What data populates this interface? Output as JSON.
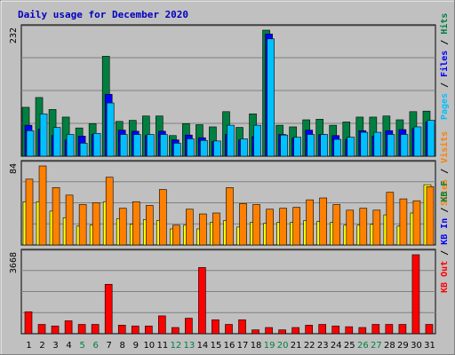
{
  "title": "Daily usage for December 2020",
  "colors": {
    "background": "#C0C0C0",
    "frame": "#808080",
    "panel": "#C0C0C0",
    "title": "#0000C0",
    "hits": "#008040",
    "files": "#0000FF",
    "pages": "#00C0FF",
    "visits": "#FFFF00",
    "sites": "#FF8000",
    "kb": "#FF0000",
    "weekend": "#008040",
    "weekday": "#000000"
  },
  "chart_data": [
    {
      "type": "bar",
      "name": "hits-files-pages",
      "ymax_label": "232",
      "ylim": [
        0,
        232
      ],
      "grid": true,
      "legend": [
        "Hits",
        "Files",
        "Pages"
      ],
      "legend_separator": " / ",
      "series": [
        {
          "name": "Hits",
          "values": [
            90,
            108,
            86,
            72,
            52,
            60,
            184,
            64,
            66,
            74,
            74,
            38,
            60,
            58,
            54,
            82,
            53,
            78,
            232,
            57,
            54,
            67,
            68,
            57,
            63,
            72,
            72,
            74,
            67,
            82,
            83
          ]
        },
        {
          "name": "Files",
          "values": [
            57,
            50,
            38,
            30,
            37,
            40,
            114,
            48,
            46,
            38,
            46,
            30,
            39,
            34,
            27,
            40,
            30,
            36,
            225,
            40,
            33,
            48,
            40,
            38,
            31,
            47,
            37,
            47,
            49,
            51,
            63
          ]
        },
        {
          "name": "Pages",
          "values": [
            47,
            78,
            53,
            40,
            24,
            42,
            98,
            40,
            40,
            40,
            40,
            24,
            32,
            29,
            28,
            57,
            32,
            57,
            216,
            39,
            35,
            40,
            40,
            31,
            35,
            44,
            44,
            40,
            40,
            54,
            66
          ]
        }
      ]
    },
    {
      "type": "bar",
      "name": "visits-sites",
      "ymax_label": "84",
      "ylim": [
        0,
        84
      ],
      "grid": true,
      "legend": [
        "Visits",
        "Sites"
      ],
      "legend_separator": " / ",
      "series": [
        {
          "name": "Visits",
          "values": [
            46,
            46,
            36,
            29,
            20,
            21,
            46,
            28,
            22,
            27,
            26,
            17,
            21,
            17,
            24,
            26,
            19,
            24,
            23,
            24,
            24,
            26,
            25,
            24,
            21,
            21,
            22,
            32,
            20,
            34,
            64
          ]
        },
        {
          "name": "Sites",
          "values": [
            70,
            84,
            61,
            53,
            43,
            45,
            72,
            39,
            46,
            42,
            59,
            21,
            38,
            33,
            34,
            61,
            44,
            43,
            38,
            39,
            40,
            48,
            50,
            43,
            37,
            39,
            37,
            56,
            49,
            47,
            62
          ]
        }
      ]
    },
    {
      "type": "bar",
      "name": "kbytes",
      "ymax_label": "3668",
      "ylim": [
        0,
        3668
      ],
      "grid": true,
      "legend": [
        "KB F",
        "KB In",
        "KB Out"
      ],
      "legend_separator": " / ",
      "series": [
        {
          "name": "KB Out",
          "values": [
            1020,
            432,
            360,
            600,
            432,
            432,
            2294,
            396,
            360,
            360,
            828,
            288,
            720,
            3074,
            648,
            432,
            648,
            180,
            288,
            180,
            288,
            396,
            432,
            360,
            324,
            288,
            432,
            432,
            432,
            3668,
            432
          ]
        }
      ]
    }
  ],
  "days": [
    "1",
    "2",
    "3",
    "4",
    "5",
    "6",
    "7",
    "8",
    "9",
    "10",
    "11",
    "12",
    "13",
    "14",
    "15",
    "16",
    "17",
    "18",
    "19",
    "20",
    "21",
    "22",
    "23",
    "24",
    "25",
    "26",
    "27",
    "28",
    "29",
    "30",
    "31"
  ],
  "weekend_days": [
    5,
    6,
    12,
    13,
    19,
    20,
    26,
    27
  ]
}
